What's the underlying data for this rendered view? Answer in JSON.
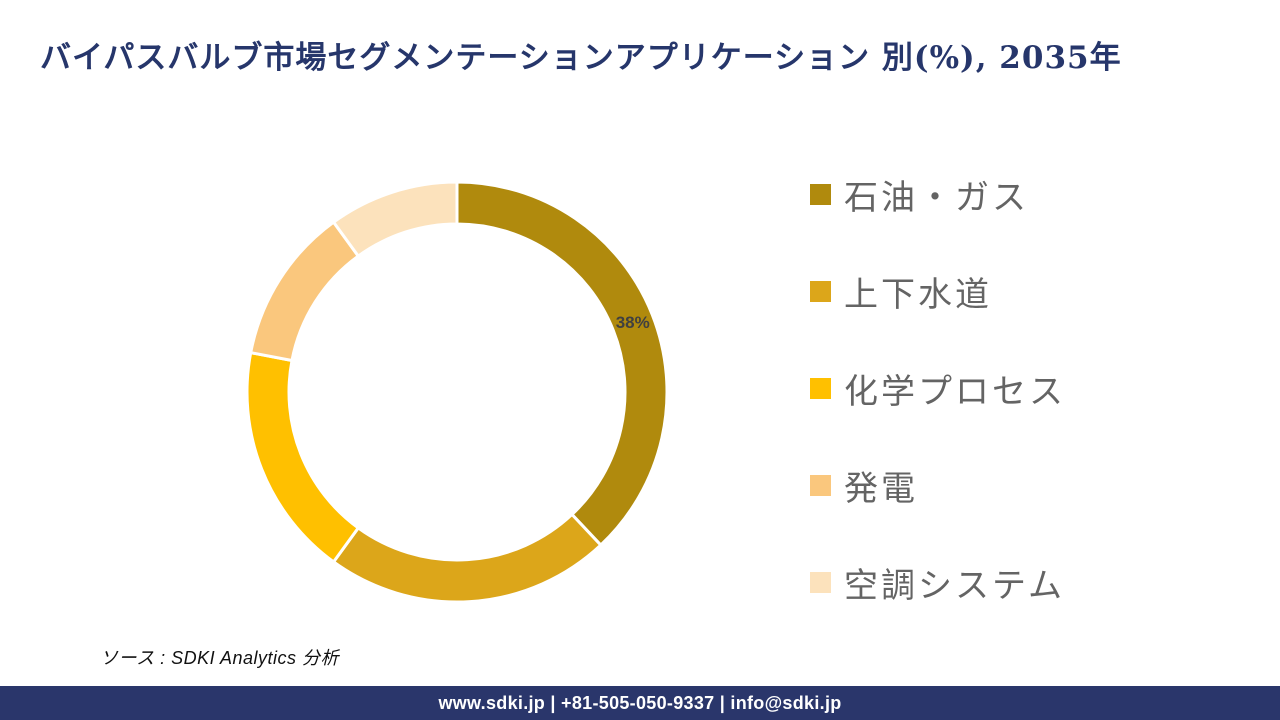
{
  "title": "バイパスバルブ市場セグメンテーションアプリケーション 別(%), 2035年",
  "source": "ソース : SDKI Analytics  分析",
  "footer": "www.sdki.jp | +81-505-050-9337 | info@sdki.jp",
  "theme": {
    "title_color": "#26366B",
    "footer_bg": "#2A366B",
    "footer_text_color": "#FFFFFF",
    "legend_text_color": "#646464",
    "data_label_color": "#404040",
    "separator_color": "#FFFFFF"
  },
  "chart_data": {
    "type": "pie",
    "subtype": "donut",
    "title": "バイパスバルブ市場セグメンテーションアプリケーション 別(%), 2035年",
    "categories": [
      "石油・ガス",
      "上下水道",
      "化学プロセス",
      "発電",
      "空調システム"
    ],
    "values": [
      38,
      22,
      18,
      12,
      10
    ],
    "unit": "%",
    "colors": [
      "#B08A0D",
      "#DCA61A",
      "#FFC000",
      "#FAC77D",
      "#FCE2BC"
    ],
    "data_labels": [
      "38%",
      null,
      null,
      null,
      null
    ],
    "start_angle_deg": 0,
    "direction": "clockwise",
    "inner_radius_ratio": 0.8,
    "legend_position": "right",
    "legend_marker": "square"
  }
}
